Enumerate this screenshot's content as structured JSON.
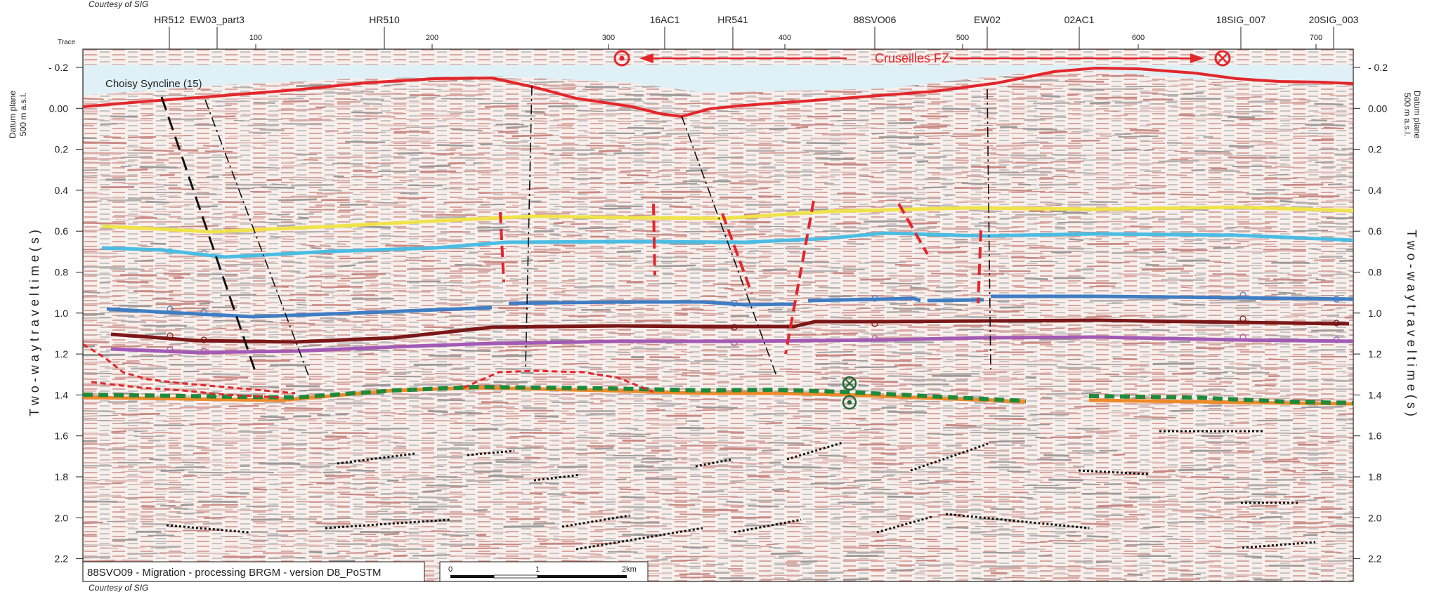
{
  "courtesy_top": "Courtesy of SIG",
  "courtesy_bottom": "Courtesy of SIG",
  "trace_label": "Trace",
  "trace_ticks": [
    "100",
    "200",
    "300",
    "400",
    "500",
    "600",
    "700"
  ],
  "well_labels": [
    "HR512",
    "EW03_part3",
    "HR510",
    "16AC1",
    "HR541",
    "88SVO06",
    "EW02",
    "02AC1",
    "18SIG_007",
    "20SIG_003"
  ],
  "time_ticks": [
    "- 0.2",
    "0.00",
    "0.2",
    "0.4",
    "0.6",
    "0.8",
    "1.0",
    "1.2",
    "1.4",
    "1.6",
    "1.8",
    "2.0",
    "2.2"
  ],
  "y_axis": {
    "left_title": "T w o - w a y   t r a v e l t i m e   ( s )",
    "right_title": "T w o - w a y   t r a v e l t i m e   ( s )",
    "datum_line1": "Datum plane",
    "datum_line2": "500 m a.s.l.",
    "range_s": [
      -0.25,
      2.3
    ]
  },
  "annotations": {
    "syncline": "Choisy Syncline (15)",
    "fault_zone": "Cruseilles FZ"
  },
  "footer": {
    "caption": "88SVO09 - Migration - processing BRGM - version D8_PoSTM",
    "scale_ticks": [
      "0",
      "1",
      "2km"
    ]
  },
  "colors": {
    "topography": "#e3262b",
    "fault": "#e3262b",
    "horizon_yellow": "#f0e34a",
    "horizon_cyan": "#4bbde3",
    "horizon_blue": "#3f7dc4",
    "horizon_maroon": "#7a1717",
    "horizon_purple": "#a25ab5",
    "horizon_orange": "#ee8a2a",
    "thrust_green": "#1f8a3a",
    "syncline_fill": "#dff0f6"
  }
}
